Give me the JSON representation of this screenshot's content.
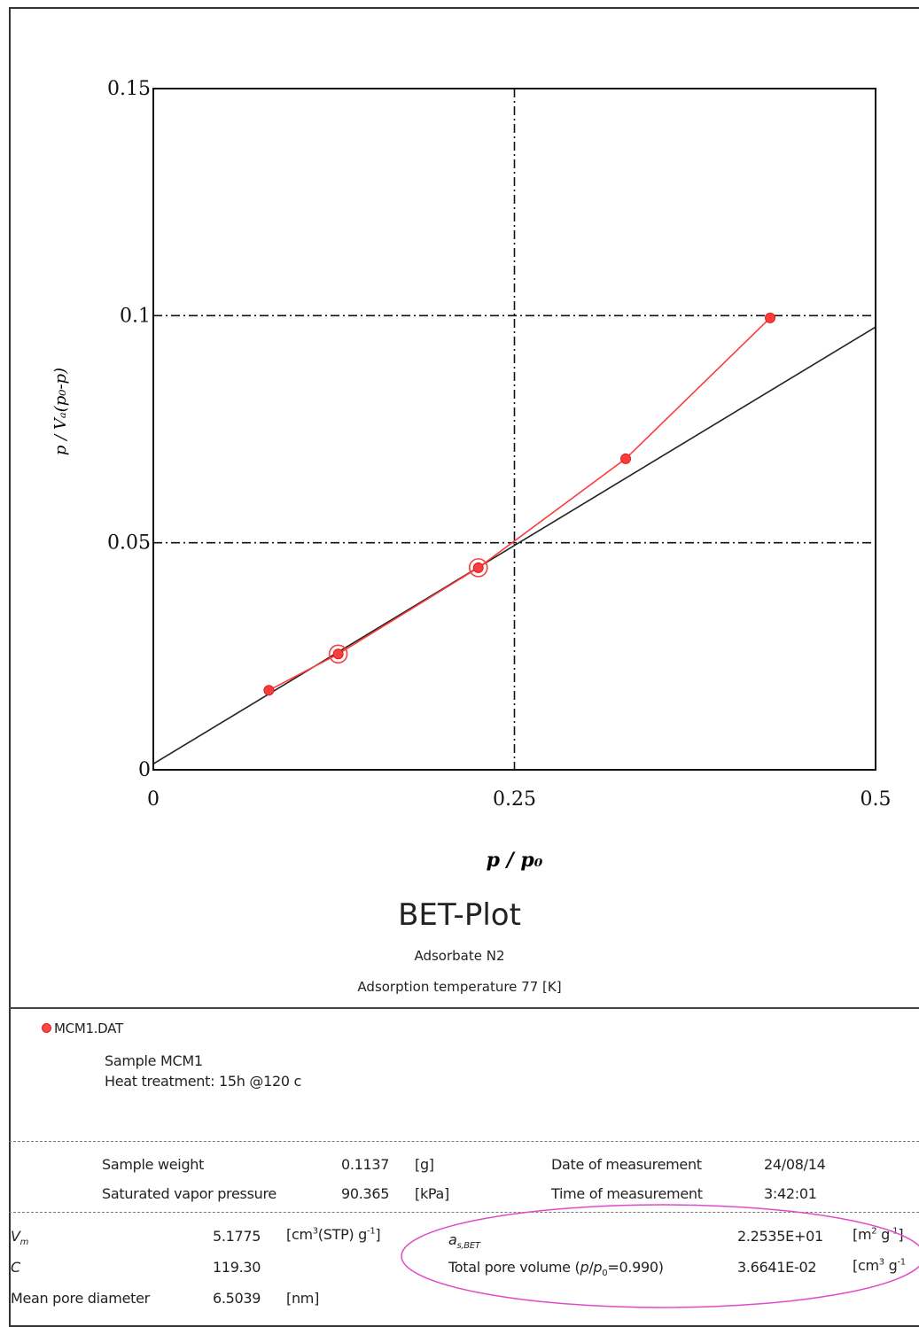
{
  "chart_data": {
    "type": "line",
    "title": "BET-Plot",
    "xlabel": "p / p₀",
    "ylabel": "p / Vₐ(p₀-p)",
    "xlim": [
      0,
      0.5
    ],
    "ylim": [
      0,
      0.15
    ],
    "xticks": [
      "0",
      "0.25",
      "0.5"
    ],
    "yticks": [
      "0",
      "0.05",
      "0.1",
      "0.15"
    ],
    "grid": "dash-dot at x=0.25, y=0.05, y=0.1",
    "series": [
      {
        "name": "MCM1.DAT",
        "color": "#ff3b3b",
        "marker": "filled circle",
        "x": [
          0.08,
          0.128,
          0.225,
          0.327,
          0.427
        ],
        "y": [
          0.0175,
          0.0255,
          0.0445,
          0.0685,
          0.0995
        ],
        "highlighted_points": [
          1,
          2
        ]
      }
    ],
    "fit_line": {
      "color": "#222222",
      "x": [
        0,
        0.5
      ],
      "y": [
        0.0013,
        0.0975
      ]
    }
  },
  "header": {
    "adsorbate": "Adsorbate N2",
    "adsorption_temperature": "Adsorption temperature 77 [K]"
  },
  "legend": {
    "file": "MCM1.DAT",
    "sample": "Sample MCM1",
    "heat_treatment": "Heat treatment: 15h @120 c"
  },
  "measurement": {
    "sample_weight_label": "Sample weight",
    "sample_weight_value": "0.1137",
    "sample_weight_unit": "[g]",
    "svp_label": "Saturated vapor pressure",
    "svp_value": "90.365",
    "svp_unit": "[kPa]",
    "date_label": "Date of measurement",
    "date_value": "24/08/14",
    "time_label": "Time of measurement",
    "time_value": "3:42:01"
  },
  "results": {
    "vm_label": "V",
    "vm_sub": "m",
    "vm_value": "5.1775",
    "vm_unit_pre": "[cm",
    "vm_unit_sup": "3",
    "vm_unit_mid": "(STP) g",
    "vm_unit_sup2": "-1",
    "vm_unit_end": "]",
    "c_label": "C",
    "c_value": "119.30",
    "mpd_label": "Mean pore diameter",
    "mpd_value": "6.5039",
    "mpd_unit": "[nm]",
    "as_label": "a",
    "as_sub": "s,BET",
    "as_value": "2.2535E+01",
    "as_unit_pre": "[m",
    "as_unit_sup": "2",
    "as_unit_mid": " g",
    "as_unit_sup2": "-1",
    "as_unit_end": "]",
    "tpv_label_pre": "Total pore volume (",
    "tpv_label_p": "p",
    "tpv_label_slash": "/",
    "tpv_label_p0": "p",
    "tpv_label_sub": "0",
    "tpv_label_end": "=0.990)",
    "tpv_value": "3.6641E-02",
    "tpv_unit_pre": "[cm",
    "tpv_unit_sup": "3",
    "tpv_unit_mid": " g",
    "tpv_unit_sup2": "-1"
  },
  "annotation": {
    "ellipse_color": "#e04cc8"
  }
}
